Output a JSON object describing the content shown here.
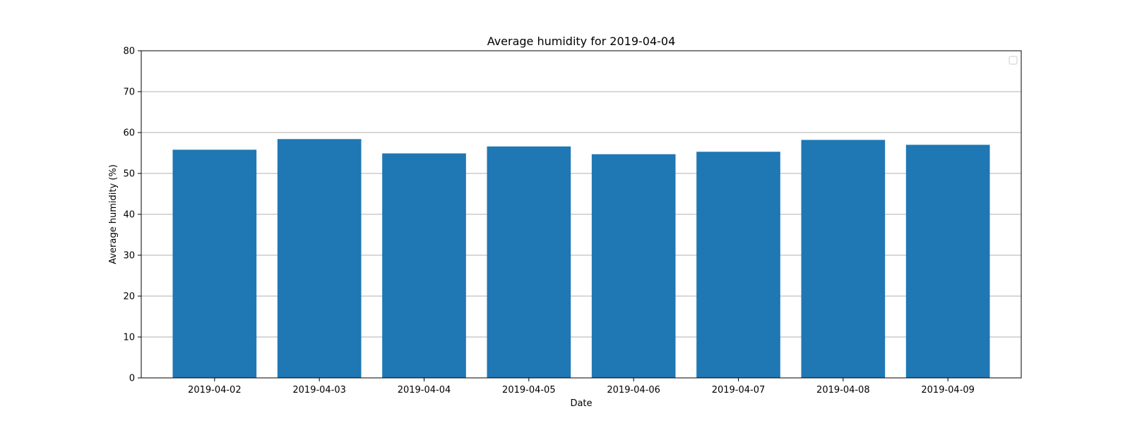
{
  "chart_data": {
    "type": "bar",
    "title": "Average humidity for 2019-04-04",
    "xlabel": "Date",
    "ylabel": "Average humidity (%)",
    "categories": [
      "2019-04-02",
      "2019-04-03",
      "2019-04-04",
      "2019-04-05",
      "2019-04-06",
      "2019-04-07",
      "2019-04-08",
      "2019-04-09"
    ],
    "values": [
      55.8,
      58.4,
      54.9,
      56.6,
      54.7,
      55.3,
      58.2,
      57.0
    ],
    "ylim": [
      0,
      80
    ],
    "yticks": [
      0,
      10,
      20,
      30,
      40,
      50,
      60,
      70,
      80
    ],
    "ytick_labels": [
      "0",
      "10",
      "20",
      "30",
      "40",
      "50",
      "60",
      "70",
      "80"
    ],
    "grid": "horizontal",
    "legend": "top-right, empty",
    "bar_color": "#1f77b4"
  }
}
